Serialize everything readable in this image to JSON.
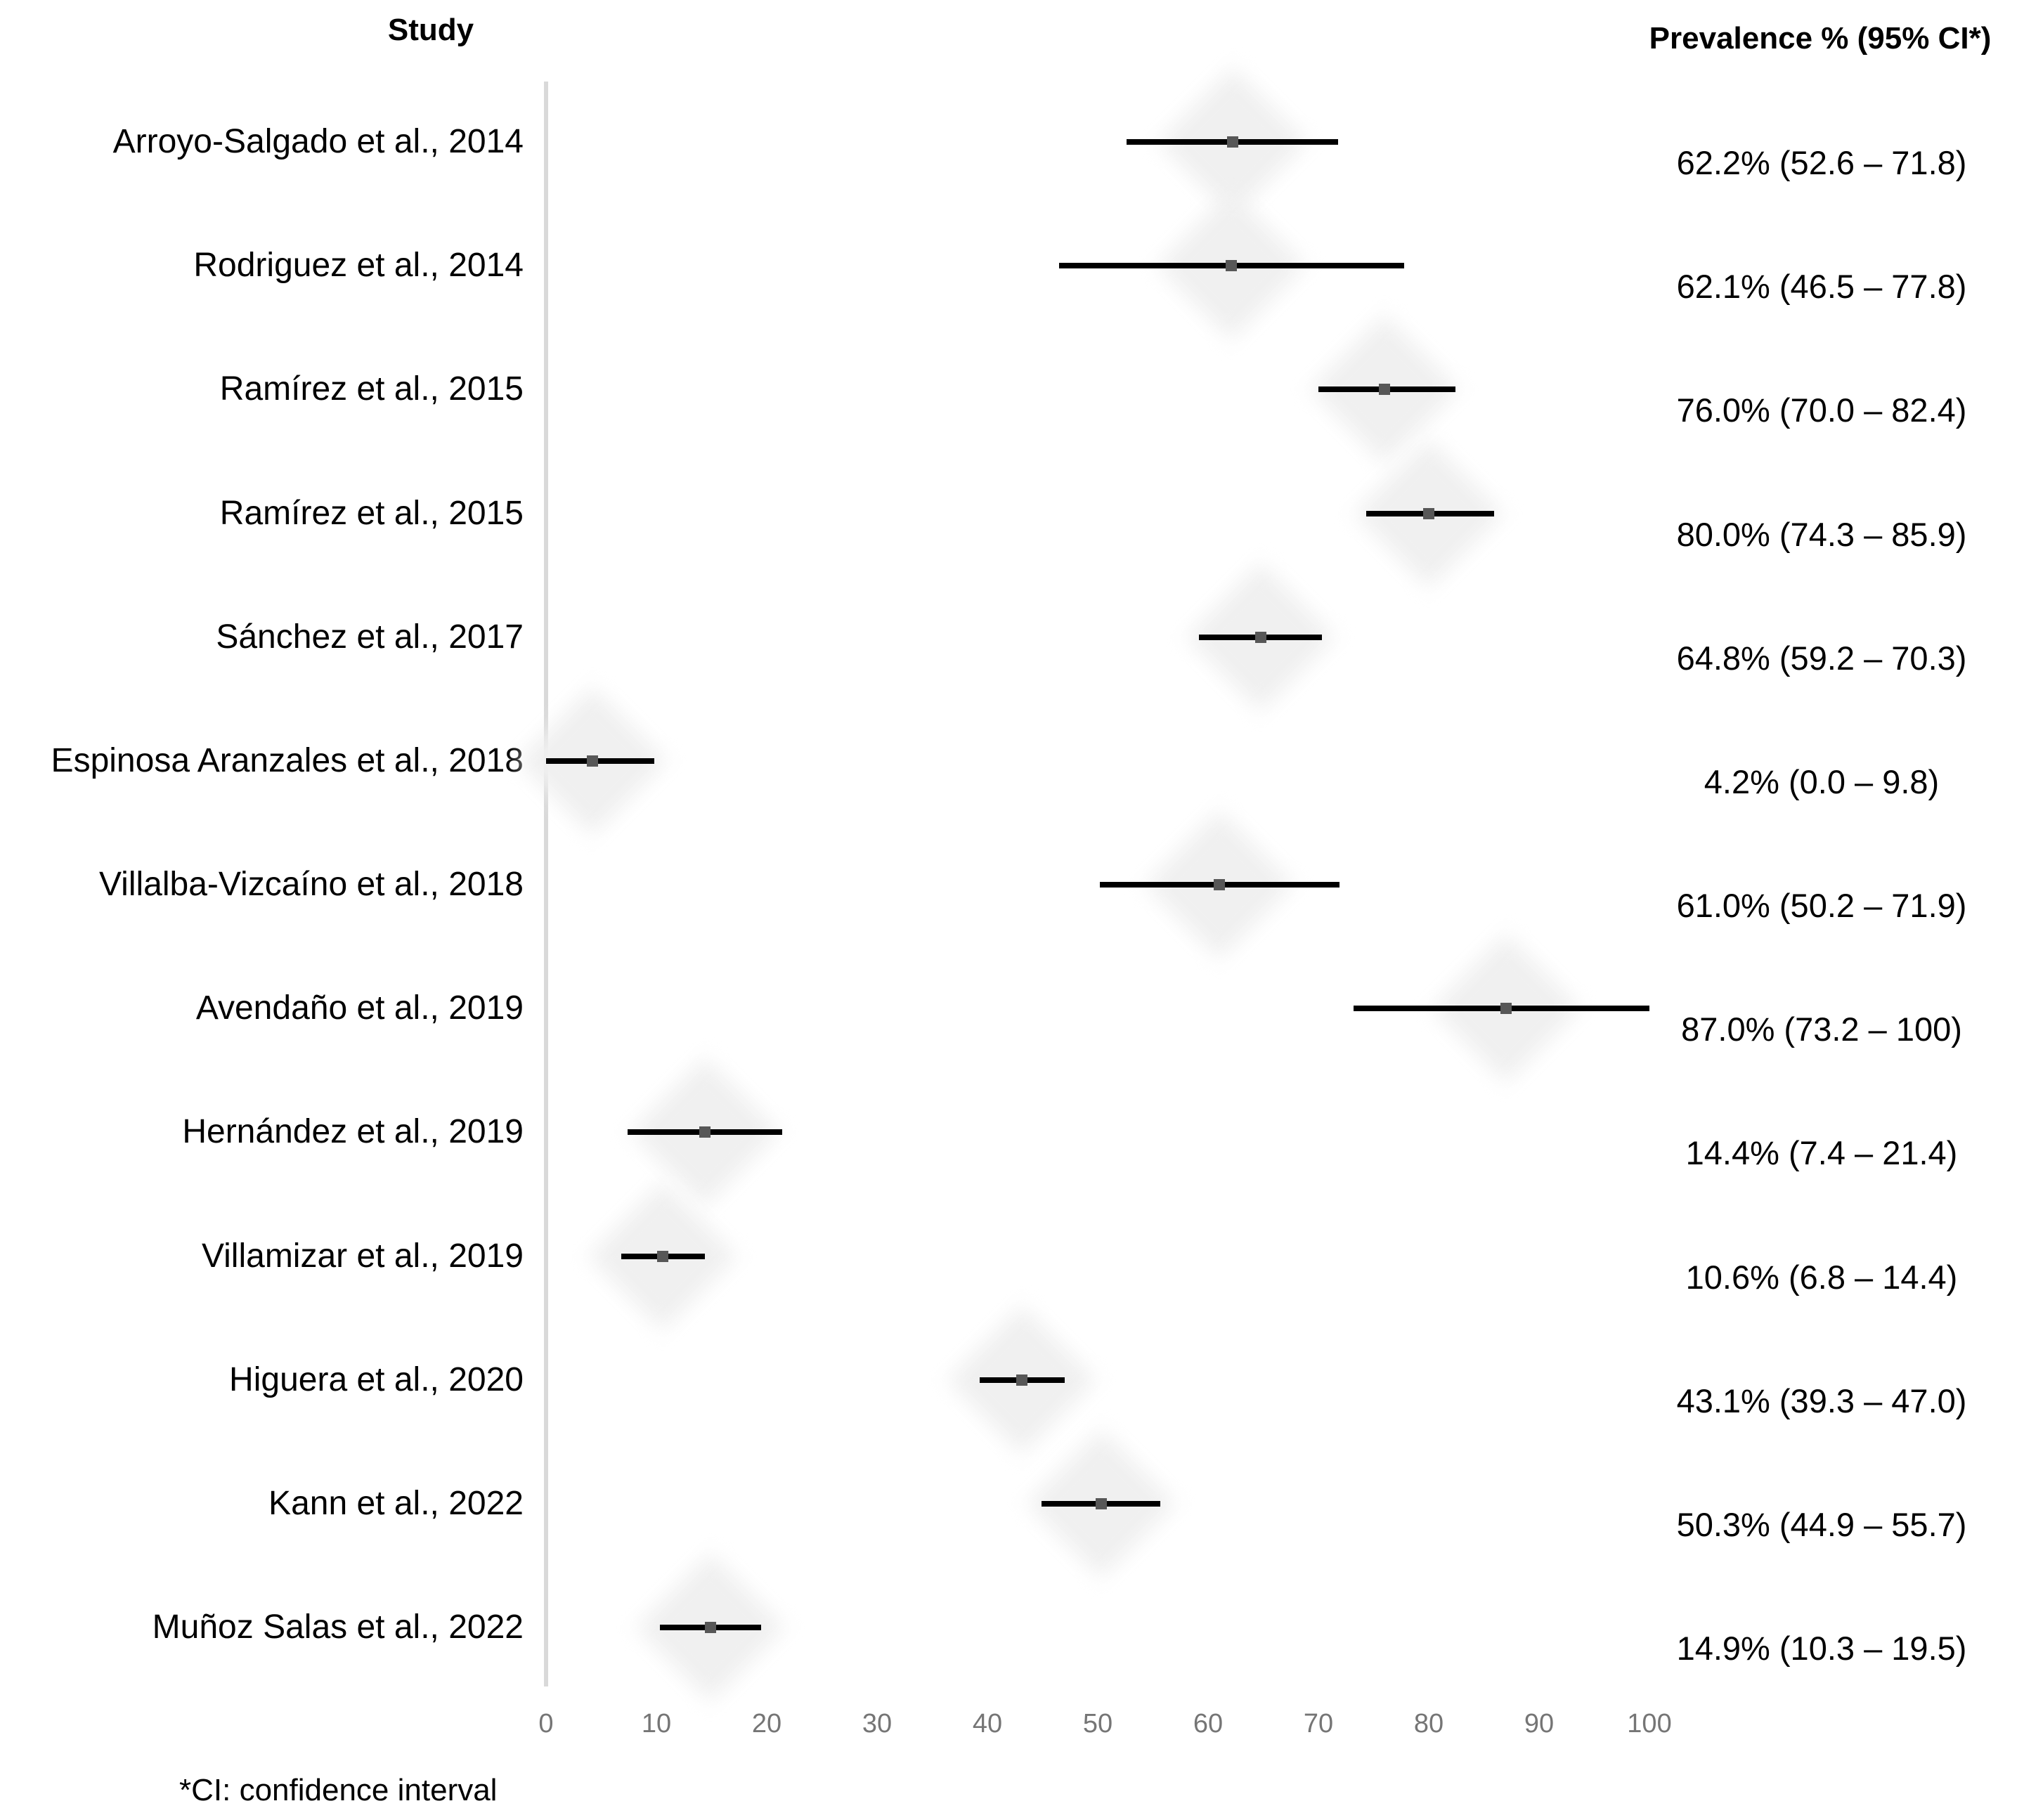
{
  "headers": {
    "study": "Study",
    "prevalence": "Prevalence % (95% CI*)"
  },
  "footnote": "*CI: confidence interval",
  "colors": {
    "ci_line": "#000000",
    "point_marker": "#575757",
    "axis_line": "#d9d9d9",
    "tick_label": "#757575",
    "weight_diamond": "#f0f0f0",
    "text": "#000000",
    "background": "#ffffff"
  },
  "chart_data": {
    "type": "scatter",
    "subtype": "forest-plot",
    "title": "",
    "xlabel": "",
    "ylabel": "",
    "xlim": [
      0,
      100
    ],
    "ticks": [
      0,
      10,
      20,
      30,
      40,
      50,
      60,
      70,
      80,
      90,
      100
    ],
    "grid": false,
    "legend": "none",
    "studies": [
      {
        "label": "Arroyo-Salgado et al., 2014",
        "prevalence": 62.2,
        "ci_low": 52.6,
        "ci_high": 71.8,
        "display": "62.2% (52.6 – 71.8)"
      },
      {
        "label": "Rodriguez et al., 2014",
        "prevalence": 62.1,
        "ci_low": 46.5,
        "ci_high": 77.8,
        "display": "62.1% (46.5 – 77.8)"
      },
      {
        "label": "Ramírez et al., 2015",
        "prevalence": 76.0,
        "ci_low": 70.0,
        "ci_high": 82.4,
        "display": "76.0% (70.0 – 82.4)"
      },
      {
        "label": "Ramírez et al., 2015",
        "prevalence": 80.0,
        "ci_low": 74.3,
        "ci_high": 85.9,
        "display": "80.0% (74.3 – 85.9)"
      },
      {
        "label": "Sánchez et al., 2017",
        "prevalence": 64.8,
        "ci_low": 59.2,
        "ci_high": 70.3,
        "display": "64.8% (59.2 – 70.3)"
      },
      {
        "label": "Espinosa Aranzales et al., 2018",
        "prevalence": 4.2,
        "ci_low": 0.0,
        "ci_high": 9.8,
        "display": "4.2% (0.0 – 9.8)"
      },
      {
        "label": "Villalba-Vizcaíno et al., 2018",
        "prevalence": 61.0,
        "ci_low": 50.2,
        "ci_high": 71.9,
        "display": "61.0% (50.2 – 71.9)"
      },
      {
        "label": "Avendaño et al., 2019",
        "prevalence": 87.0,
        "ci_low": 73.2,
        "ci_high": 100,
        "display": "87.0% (73.2 – 100)"
      },
      {
        "label": "Hernández et al., 2019",
        "prevalence": 14.4,
        "ci_low": 7.4,
        "ci_high": 21.4,
        "display": "14.4% (7.4 – 21.4)"
      },
      {
        "label": "Villamizar et al., 2019",
        "prevalence": 10.6,
        "ci_low": 6.8,
        "ci_high": 14.4,
        "display": "10.6% (6.8 – 14.4)"
      },
      {
        "label": "Higuera et al., 2020",
        "prevalence": 43.1,
        "ci_low": 39.3,
        "ci_high": 47.0,
        "display": "43.1% (39.3 – 47.0)"
      },
      {
        "label": "Kann et al., 2022",
        "prevalence": 50.3,
        "ci_low": 44.9,
        "ci_high": 55.7,
        "display": "50.3% (44.9 – 55.7)"
      },
      {
        "label": "Muñoz Salas et al., 2022",
        "prevalence": 14.9,
        "ci_low": 10.3,
        "ci_high": 19.5,
        "display": "14.9% (10.3 – 19.5)"
      }
    ]
  }
}
